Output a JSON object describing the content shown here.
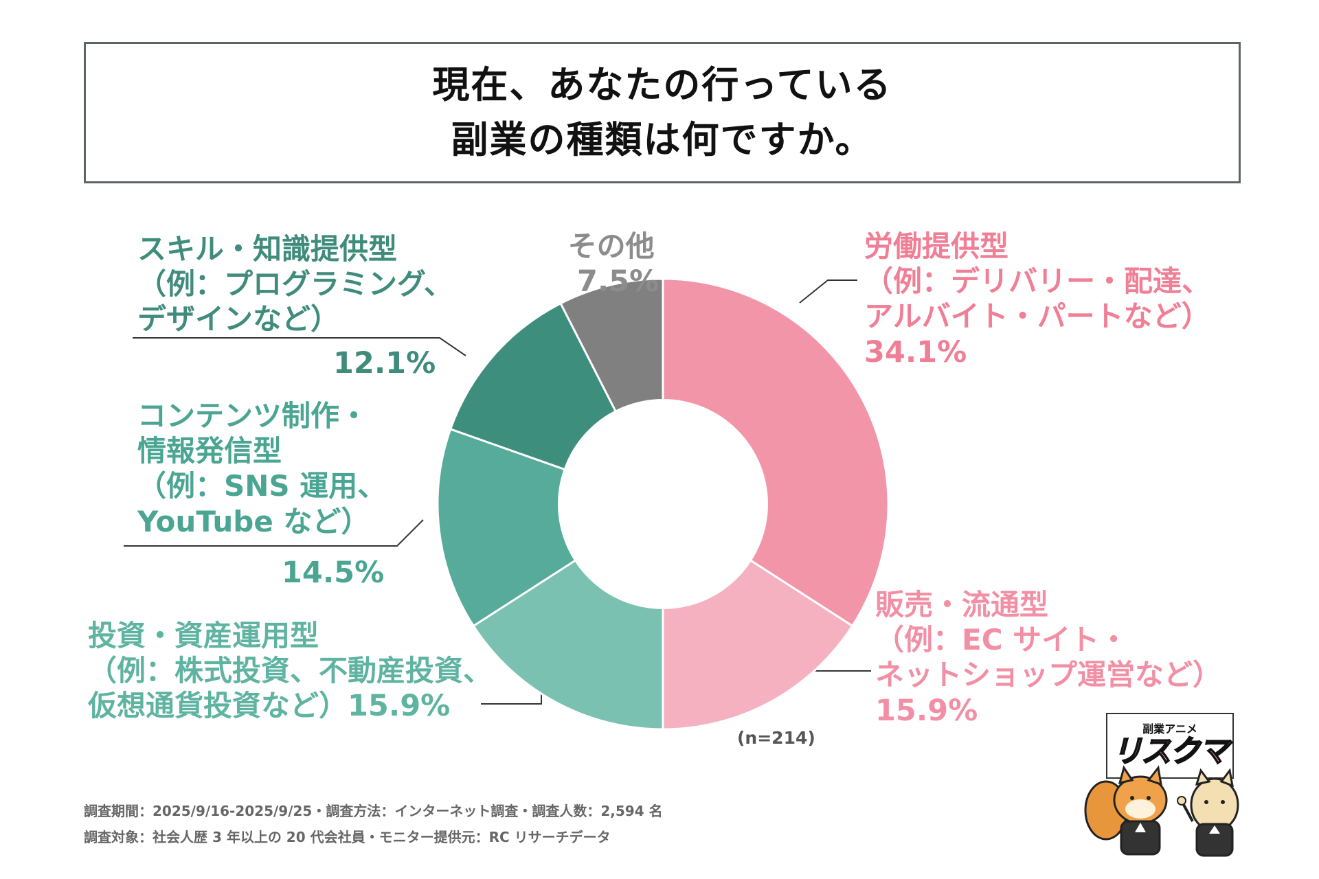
{
  "title": {
    "line1": "現在、あなたの行っている",
    "line2": "副業の種類は何ですか。"
  },
  "chart_data": {
    "type": "pie",
    "donut": true,
    "title": "現在、あなたの行っている副業の種類は何ですか。",
    "n_label": "(n=214)",
    "slices": [
      {
        "label": "労働提供型（例：デリバリー・配達、アルバイト・パートなど）",
        "value": 34.1,
        "color": "#f295a8"
      },
      {
        "label": "販売・流通型（例：ECサイト・ネットショップ運営など）",
        "value": 15.9,
        "color": "#f6b1c0"
      },
      {
        "label": "投資・資産運用型（例：株式投資、不動産投資、仮想通貨投資など）",
        "value": 15.9,
        "color": "#7bc1b1"
      },
      {
        "label": "コンテンツ制作・情報発信型（例：SNS運用、YouTubeなど）",
        "value": 14.5,
        "color": "#56ab9a"
      },
      {
        "label": "スキル・知識提供型（例：プログラミング、デザインなど）",
        "value": 12.1,
        "color": "#3e8e7e"
      },
      {
        "label": "その他",
        "value": 7.5,
        "color": "#808080"
      }
    ]
  },
  "labels": {
    "labor": {
      "lines": [
        "労働提供型",
        "（例：デリバリー・配達、",
        "アルバイト・パートなど）"
      ],
      "pct": "34.1%"
    },
    "sales": {
      "lines": [
        "販売・流通型",
        "（例：EC サイト・",
        "ネットショップ運営など）"
      ],
      "pct": "15.9%"
    },
    "invest": {
      "lines": [
        "投資・資産運用型",
        "（例：株式投資、不動産投資、",
        "仮想通貨投資など）"
      ],
      "pct": "15.9%"
    },
    "content": {
      "lines": [
        "コンテンツ制作・",
        "情報発信型",
        "（例：SNS 運用、",
        "YouTube など）"
      ],
      "pct": "14.5%"
    },
    "skill": {
      "lines": [
        "スキル・知識提供型",
        "（例：プログラミング、",
        "デザインなど）"
      ],
      "pct": "12.1%"
    },
    "other": {
      "lines": [
        "その他"
      ],
      "pct": "7.5%"
    }
  },
  "footer": {
    "line1": "調査期間：2025/9/16-2025/9/25・調査方法：インターネット調査・調査人数：2,594 名",
    "line2": "調査対象：社会人歴 3 年以上の 20 代会社員・モニター提供元：RC リサーチデータ"
  },
  "logo": {
    "small": "副業アニメ",
    "main": "リスクマ"
  },
  "colors": {
    "pink": "#f07f96",
    "green_dark": "#3f8c7c",
    "gray": "#8c8c8c",
    "border": "#5d6466"
  }
}
